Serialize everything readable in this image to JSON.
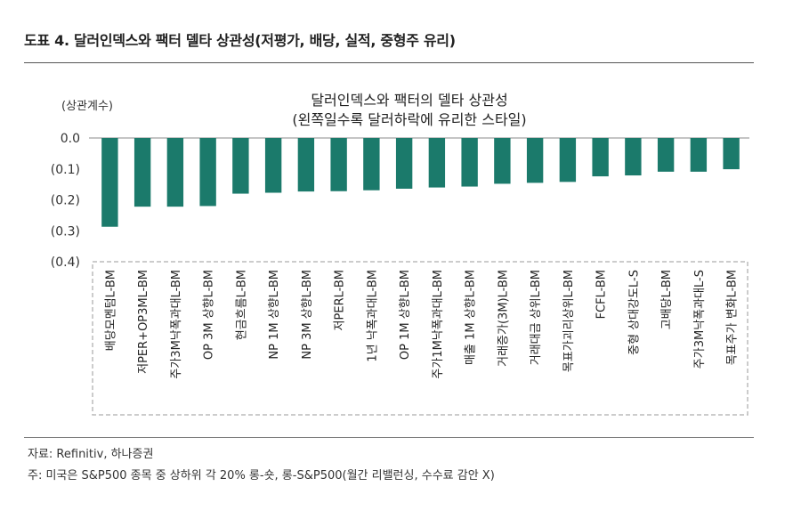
{
  "header": {
    "title": "도표 4. 달러인덱스와 팩터 델타 상관성(저평가, 배당, 실적, 중형주 유리)"
  },
  "footer": {
    "source": "자료: Refinitiv, 하나증권",
    "note": "주: 미국은 S&P500 종목 중 상하위 각 20% 롱-숏, 롱-S&P500(월간 리밸런싱, 수수료 감안 X)"
  },
  "chart_data": {
    "type": "bar",
    "title": "달러인덱스와 팩터의 델타 상관성",
    "subtitle": "(왼쪽일수록 달러하락에 유리한 스타일)",
    "ylabel": "(상관계수)",
    "ylim": [
      -0.4,
      0.0
    ],
    "yticks": [
      0.0,
      -0.1,
      -0.2,
      -0.3,
      -0.4
    ],
    "ytick_labels": [
      "0.0",
      "(0.1)",
      "(0.2)",
      "(0.3)",
      "(0.4)"
    ],
    "grid": false,
    "bar_color": "#1b7a6b",
    "categories": [
      "배당모멘텀L-BM",
      "저PER+OP3ML-BM",
      "주가3M낙폭과대L-BM",
      "OP 3M 상향L-BM",
      "현금흐름L-BM",
      "NP 1M 상향L-BM",
      "NP 3M 상향L-BM",
      "저PERL-BM",
      "1년 낙폭과대L-BM",
      "OP 1M 상향L-BM",
      "주가1M낙폭과대L-BM",
      "매출 1M 상향L-BM",
      "거래증가(3M)L-BM",
      "거래대금 상위L-BM",
      "목표가괴리상위L-BM",
      "FCFL-BM",
      "중형 상대강도L-S",
      "고배당L-BM",
      "주가3M낙폭과대L-S",
      "목표주가 변화L-BM"
    ],
    "values": [
      -0.287,
      -0.222,
      -0.222,
      -0.22,
      -0.18,
      -0.177,
      -0.173,
      -0.172,
      -0.169,
      -0.164,
      -0.16,
      -0.157,
      -0.148,
      -0.145,
      -0.142,
      -0.124,
      -0.121,
      -0.109,
      -0.109,
      -0.101
    ]
  }
}
